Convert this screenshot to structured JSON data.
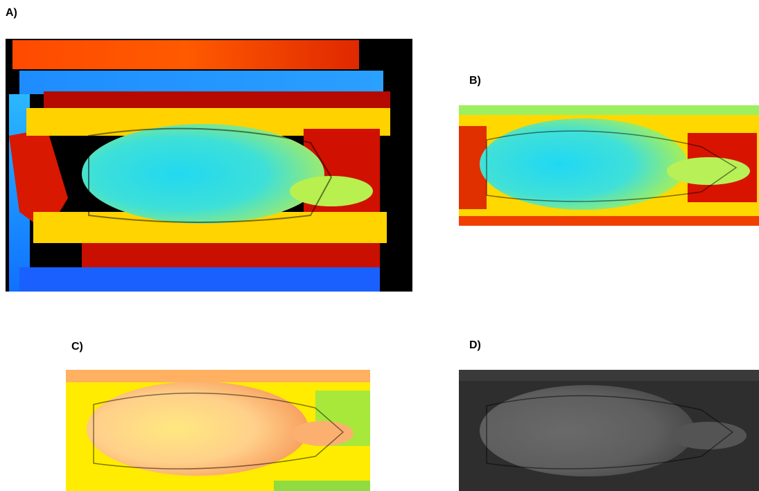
{
  "figure": {
    "panels": [
      {
        "label": "A)",
        "colormap": "jet-depth",
        "description_icon": "depth-image-full-scene"
      },
      {
        "label": "B)",
        "colormap": "jet-depth",
        "description_icon": "depth-image-cropped"
      },
      {
        "label": "C)",
        "colormap": "autumn-depth",
        "description_icon": "depth-image-cropped-warm"
      },
      {
        "label": "D)",
        "colormap": "grayscale-depth",
        "description_icon": "depth-image-cropped-gray"
      }
    ]
  }
}
